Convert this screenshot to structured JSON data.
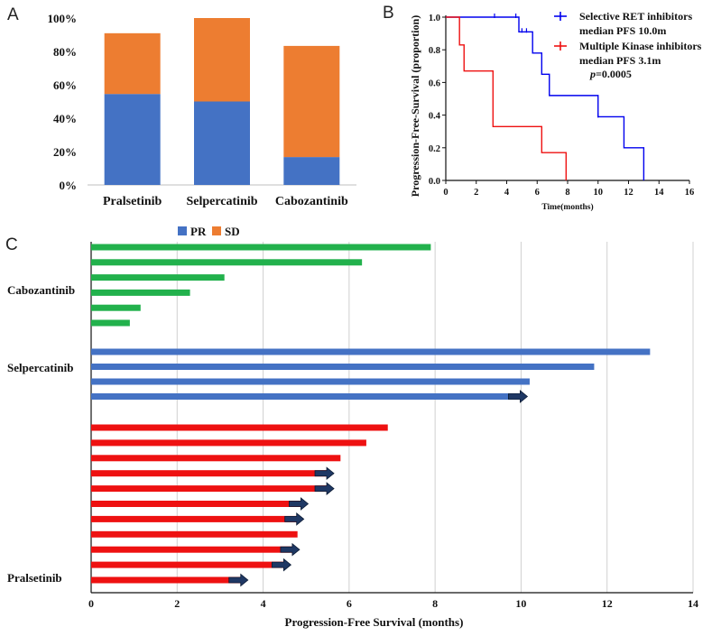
{
  "panels": {
    "a": "A",
    "b": "B",
    "c": "C"
  },
  "chart_data": [
    {
      "id": "A",
      "type": "bar",
      "stacked": true,
      "categories": [
        "Pralsetinib",
        "Selpercatinib",
        "Cabozantinib"
      ],
      "series": [
        {
          "name": "PR",
          "color": "#4472c4",
          "values": [
            54.5,
            50,
            16.7
          ]
        },
        {
          "name": "SD",
          "color": "#ed7d31",
          "values": [
            36.4,
            50,
            66.6
          ]
        }
      ],
      "ylim": [
        0,
        100
      ],
      "yticks": [
        "0%",
        "20%",
        "40%",
        "60%",
        "80%",
        "100%"
      ],
      "legend": {
        "position": "bottom",
        "labels": [
          "PR",
          "SD"
        ]
      }
    },
    {
      "id": "B",
      "type": "line",
      "step": true,
      "xlabel": "Time(months)",
      "ylabel": "Progression-Free-Survival (proportion)",
      "xlim": [
        0,
        16
      ],
      "ylim": [
        0,
        1
      ],
      "xticks": [
        "0",
        "2",
        "4",
        "6",
        "8",
        "10",
        "12",
        "14",
        "16"
      ],
      "yticks": [
        "0.0",
        "0.2",
        "0.4",
        "0.6",
        "0.8",
        "1.0"
      ],
      "series": [
        {
          "name": "Selective RET inhibitors",
          "sub": "median PFS 10.0m",
          "color": "#0000ee",
          "x": [
            0,
            4.8,
            5.7,
            6.3,
            6.8,
            10.0,
            11.7,
            13.0
          ],
          "y": [
            1.0,
            0.91,
            0.78,
            0.65,
            0.52,
            0.39,
            0.2,
            0.0
          ],
          "censored": [
            [
              3.2,
              1.0
            ],
            [
              4.6,
              1.0
            ],
            [
              5.0,
              0.91
            ],
            [
              5.3,
              0.91
            ],
            [
              10.0,
              0.39
            ]
          ]
        },
        {
          "name": "Multiple Kinase inhibitors",
          "sub": "median PFS 3.1m",
          "color": "#ee1111",
          "x": [
            0,
            0.9,
            1.2,
            3.1,
            6.3,
            7.9
          ],
          "y": [
            1.0,
            0.83,
            0.67,
            0.33,
            0.17,
            0.0
          ],
          "censored": []
        }
      ],
      "pvalue_label": "p",
      "pvalue_text": "=0.0005"
    },
    {
      "id": "C",
      "type": "bar",
      "orientation": "horizontal",
      "title": "",
      "xlabel": "Progression-Free Survival (months)",
      "xlim": [
        0,
        14
      ],
      "xticks": [
        "0",
        "2",
        "4",
        "6",
        "8",
        "10",
        "12",
        "14"
      ],
      "groups": [
        {
          "name": "Cabozantinib",
          "color": "#22b14c",
          "values": [
            7.9,
            6.3,
            3.1,
            2.3,
            1.15,
            0.9
          ],
          "ongoing": [
            false,
            false,
            false,
            false,
            false,
            false
          ]
        },
        {
          "name": "Selpercatinib",
          "color": "#4472c4",
          "values": [
            13.0,
            11.7,
            10.2,
            10.0
          ],
          "ongoing": [
            false,
            false,
            false,
            true
          ]
        },
        {
          "name": "Pralsetinib",
          "color": "#ee1111",
          "values": [
            6.9,
            6.4,
            5.8,
            5.5,
            5.5,
            4.9,
            4.8,
            4.8,
            4.7,
            4.5,
            3.5
          ],
          "ongoing": [
            false,
            false,
            false,
            true,
            true,
            true,
            true,
            false,
            true,
            true,
            true
          ]
        }
      ]
    }
  ]
}
